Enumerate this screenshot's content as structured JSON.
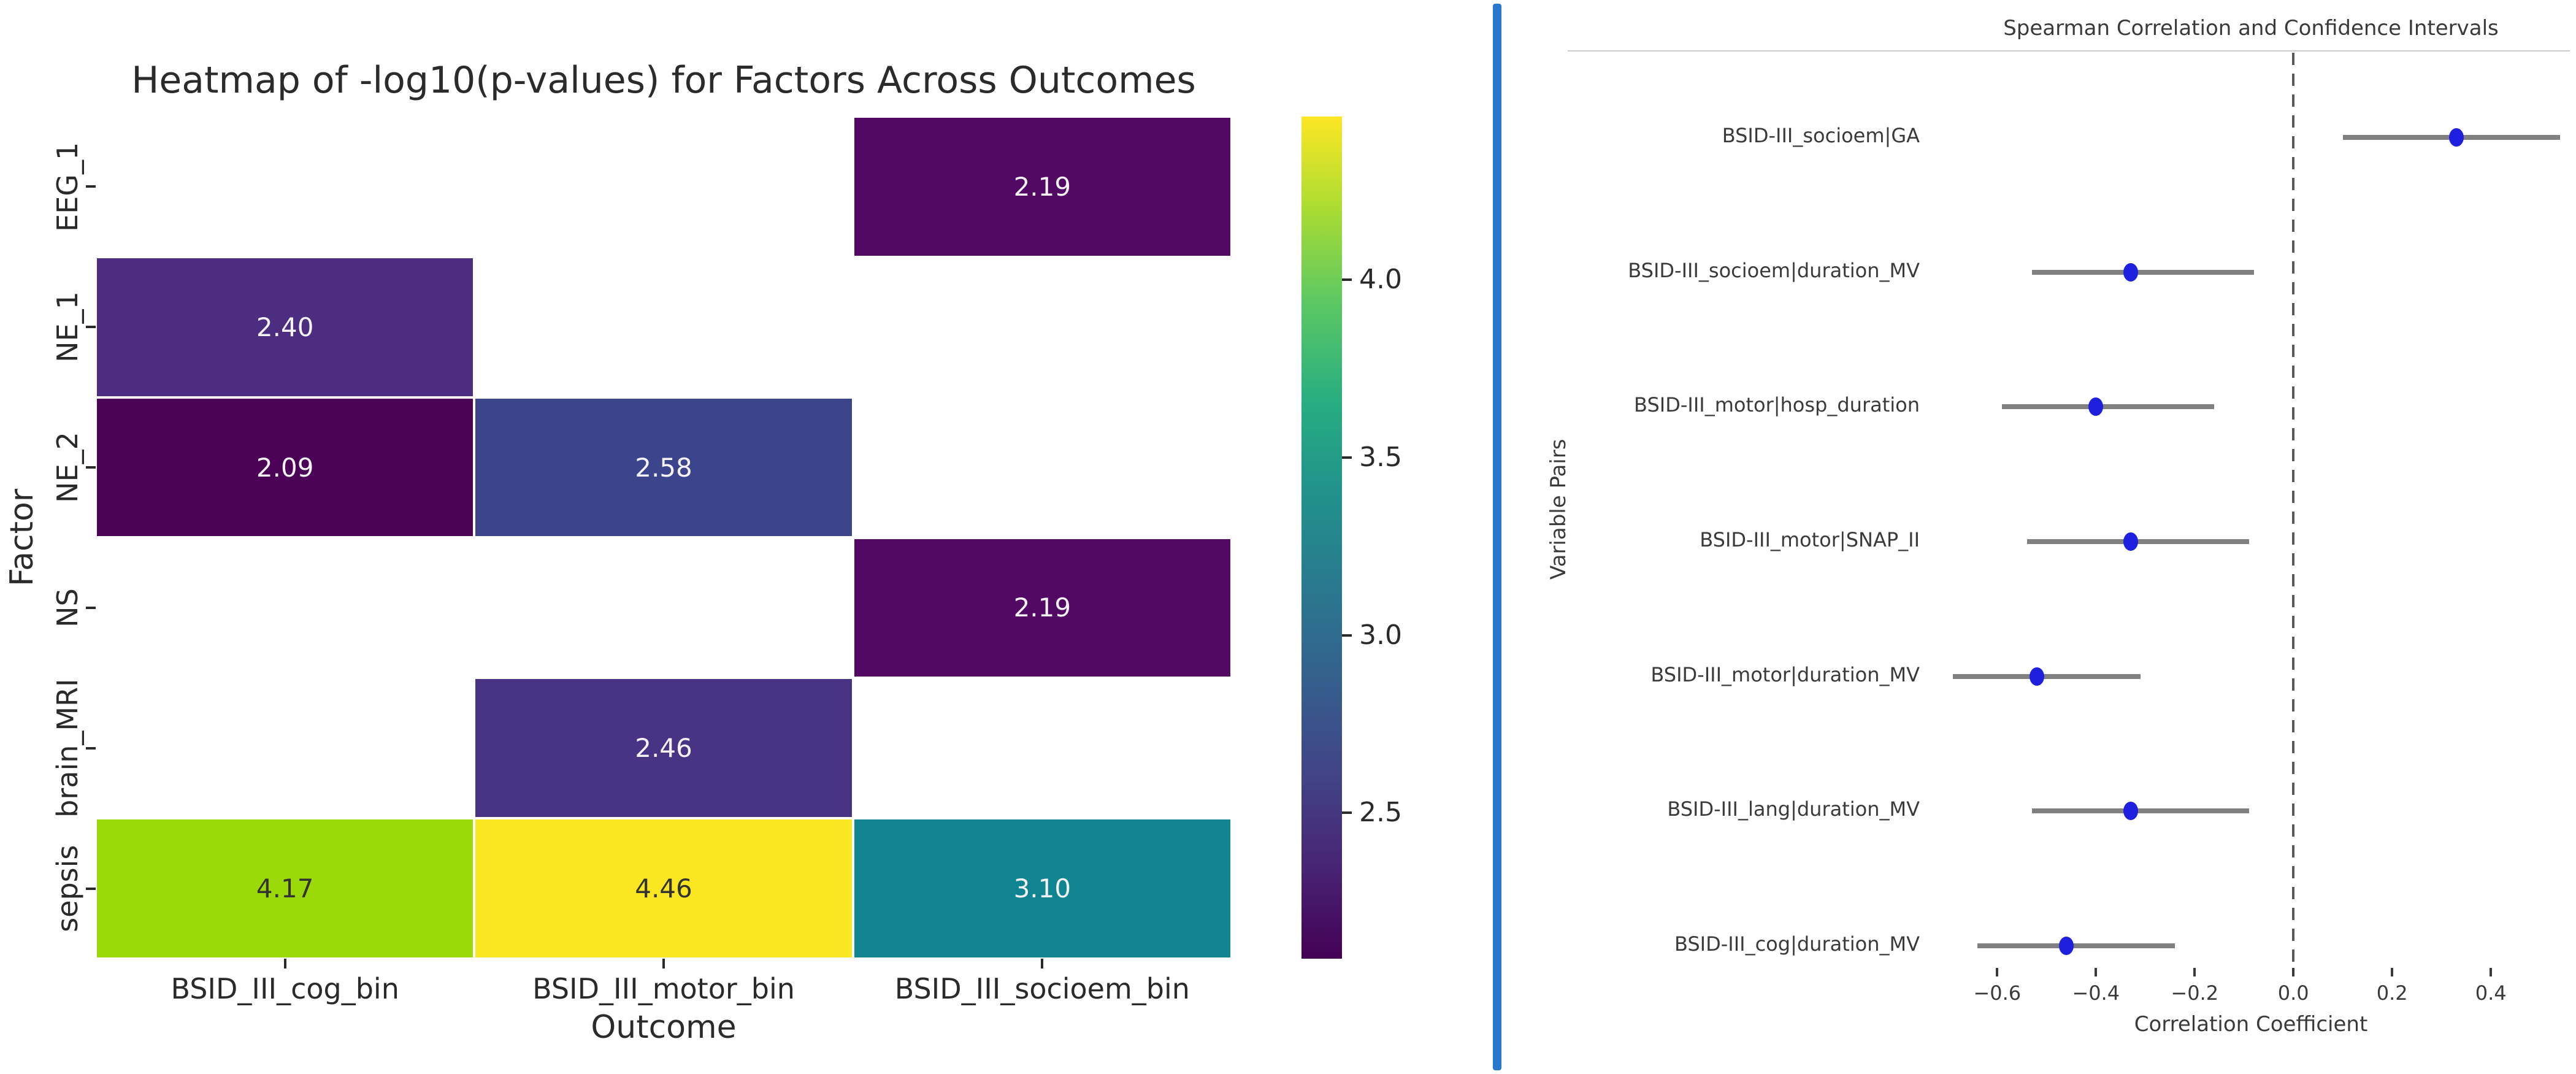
{
  "figure": {
    "background": "#ffffff",
    "divider_color": "#2878cd"
  },
  "chart_data": [
    {
      "type": "heatmap",
      "title": "Heatmap of -log10(p-values) for Factors Across Outcomes",
      "xlabel": "Outcome",
      "ylabel": "Factor",
      "rows": [
        "EEG_1",
        "NE_1",
        "NE_2",
        "NS",
        "brain_MRI",
        "sepsis"
      ],
      "columns": [
        "BSID_III_cog_bin",
        "BSID_III_motor_bin",
        "BSID_III_socioem_bin"
      ],
      "cells": [
        {
          "row": 0,
          "col": 2,
          "value": "2.19",
          "color": "#510964",
          "text": "light"
        },
        {
          "row": 1,
          "col": 0,
          "value": "2.40",
          "color": "#4c2d80",
          "text": "light"
        },
        {
          "row": 2,
          "col": 0,
          "value": "2.09",
          "color": "#4a0156",
          "text": "light"
        },
        {
          "row": 2,
          "col": 1,
          "value": "2.58",
          "color": "#3c458c",
          "text": "light"
        },
        {
          "row": 3,
          "col": 2,
          "value": "2.19",
          "color": "#510964",
          "text": "light"
        },
        {
          "row": 4,
          "col": 1,
          "value": "2.46",
          "color": "#493384",
          "text": "light"
        },
        {
          "row": 5,
          "col": 0,
          "value": "4.17",
          "color": "#9cd908",
          "text": "dark"
        },
        {
          "row": 5,
          "col": 1,
          "value": "4.46",
          "color": "#fbe622",
          "text": "dark"
        },
        {
          "row": 5,
          "col": 2,
          "value": "3.10",
          "color": "#108591",
          "text": "light"
        }
      ],
      "annotation_text_light": "#f5f2f8",
      "annotation_text_dark": "#333333",
      "colorbar": {
        "colormap": "viridis",
        "vmin": 2.09,
        "vmax": 4.46,
        "ticks": [
          "4.0",
          "3.5",
          "3.0",
          "2.5"
        ],
        "tick_values": [
          4.0,
          3.5,
          3.0,
          2.5
        ]
      },
      "grid": false
    },
    {
      "type": "scatter",
      "subtype": "forest-plot",
      "title": "Spearman Correlation and Confidence Intervals",
      "xlabel": "Correlation Coefficient",
      "ylabel": "Variable Pairs",
      "xlim": [
        -0.732,
        0.56
      ],
      "x_tick_labels": [
        "−0.6",
        "−0.4",
        "−0.2",
        "0.0",
        "0.2",
        "0.4"
      ],
      "x_tick_values": [
        -0.6,
        -0.4,
        -0.2,
        0.0,
        0.2,
        0.4
      ],
      "zero_line": 0.0,
      "point_color": "#1f1fe0",
      "ci_color": "#808080",
      "points": [
        {
          "label": "BSID-III_socioem|GA",
          "r": 0.33,
          "ci_low": 0.1,
          "ci_high": 0.54
        },
        {
          "label": "BSID-III_socioem|duration_MV",
          "r": -0.33,
          "ci_low": -0.53,
          "ci_high": -0.08
        },
        {
          "label": "BSID-III_motor|hosp_duration",
          "r": -0.4,
          "ci_low": -0.59,
          "ci_high": -0.16
        },
        {
          "label": "BSID-III_motor|SNAP_II",
          "r": -0.33,
          "ci_low": -0.54,
          "ci_high": -0.09
        },
        {
          "label": "BSID-III_motor|duration_MV",
          "r": -0.52,
          "ci_low": -0.69,
          "ci_high": -0.31
        },
        {
          "label": "BSID-III_lang|duration_MV",
          "r": -0.33,
          "ci_low": -0.53,
          "ci_high": -0.09
        },
        {
          "label": "BSID-III_cog|duration_MV",
          "r": -0.46,
          "ci_low": -0.64,
          "ci_high": -0.24
        }
      ],
      "legend": null
    }
  ]
}
